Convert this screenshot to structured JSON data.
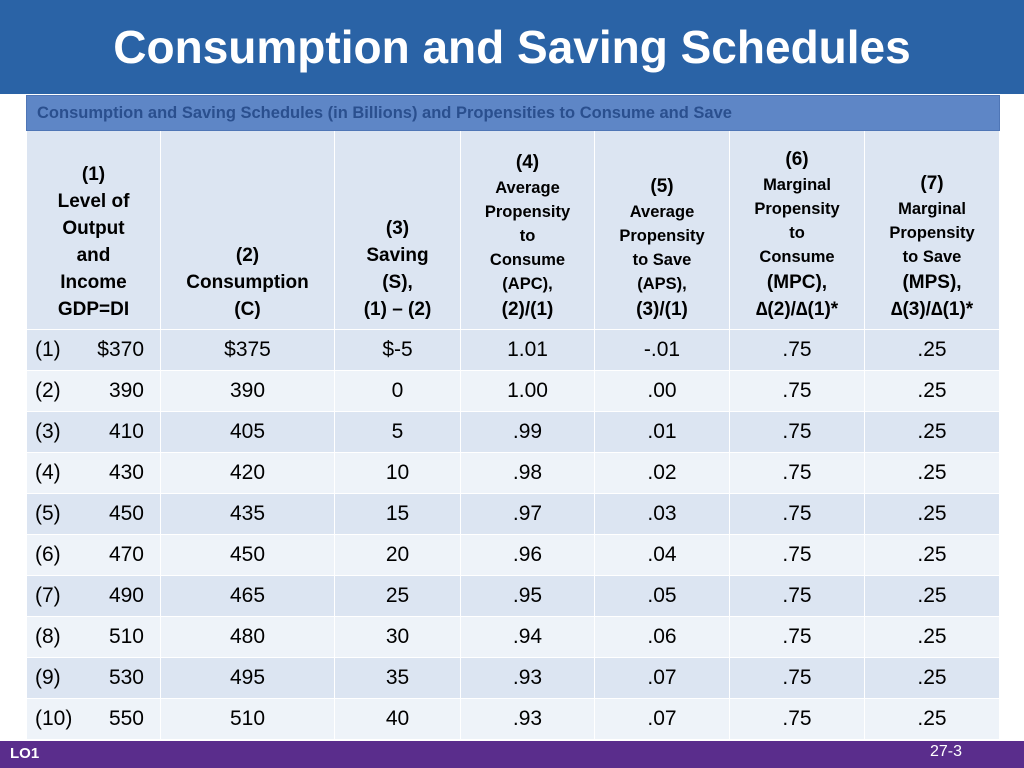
{
  "slide": {
    "title": "Consumption and Saving Schedules",
    "footer_left": "LO1",
    "page_number": "27-3"
  },
  "table": {
    "caption": "Consumption and Saving Schedules (in Billions) and Propensities to Consume and Save",
    "headers": [
      [
        "(1)",
        "Level of",
        "Output",
        "and",
        "Income",
        "GDP=DI"
      ],
      [
        "(2)",
        "Consumption",
        "(C)"
      ],
      [
        "(3)",
        "Saving",
        "(S),",
        "(1) – (2)"
      ],
      [
        "(4)",
        "Average",
        "Propensity",
        "to",
        "Consume",
        "(APC),",
        "(2)/(1)"
      ],
      [
        "(5)",
        "Average",
        "Propensity",
        "to Save",
        "(APS),",
        "(3)/(1)"
      ],
      [
        "(6)",
        "Marginal",
        "Propensity",
        "to",
        "Consume",
        "(MPC),",
        "∆(2)/∆(1)*"
      ],
      [
        "(7)",
        "Marginal",
        "Propensity",
        "to Save",
        "(MPS),",
        "∆(3)/∆(1)*"
      ]
    ],
    "rows": [
      [
        "(1)",
        "$370",
        "$375",
        "$-5",
        "1.01",
        "-.01",
        ".75",
        ".25"
      ],
      [
        "(2)",
        "390",
        "390",
        "0",
        "1.00",
        ".00",
        ".75",
        ".25"
      ],
      [
        "(3)",
        "410",
        "405",
        "5",
        ".99",
        ".01",
        ".75",
        ".25"
      ],
      [
        "(4)",
        "430",
        "420",
        "10",
        ".98",
        ".02",
        ".75",
        ".25"
      ],
      [
        "(5)",
        "450",
        "435",
        "15",
        ".97",
        ".03",
        ".75",
        ".25"
      ],
      [
        "(6)",
        "470",
        "450",
        "20",
        ".96",
        ".04",
        ".75",
        ".25"
      ],
      [
        "(7)",
        "490",
        "465",
        "25",
        ".95",
        ".05",
        ".75",
        ".25"
      ],
      [
        "(8)",
        "510",
        "480",
        "30",
        ".94",
        ".06",
        ".75",
        ".25"
      ],
      [
        "(9)",
        "530",
        "495",
        "35",
        ".93",
        ".07",
        ".75",
        ".25"
      ],
      [
        "(10)",
        "550",
        "510",
        "40",
        ".93",
        ".07",
        ".75",
        ".25"
      ]
    ]
  }
}
